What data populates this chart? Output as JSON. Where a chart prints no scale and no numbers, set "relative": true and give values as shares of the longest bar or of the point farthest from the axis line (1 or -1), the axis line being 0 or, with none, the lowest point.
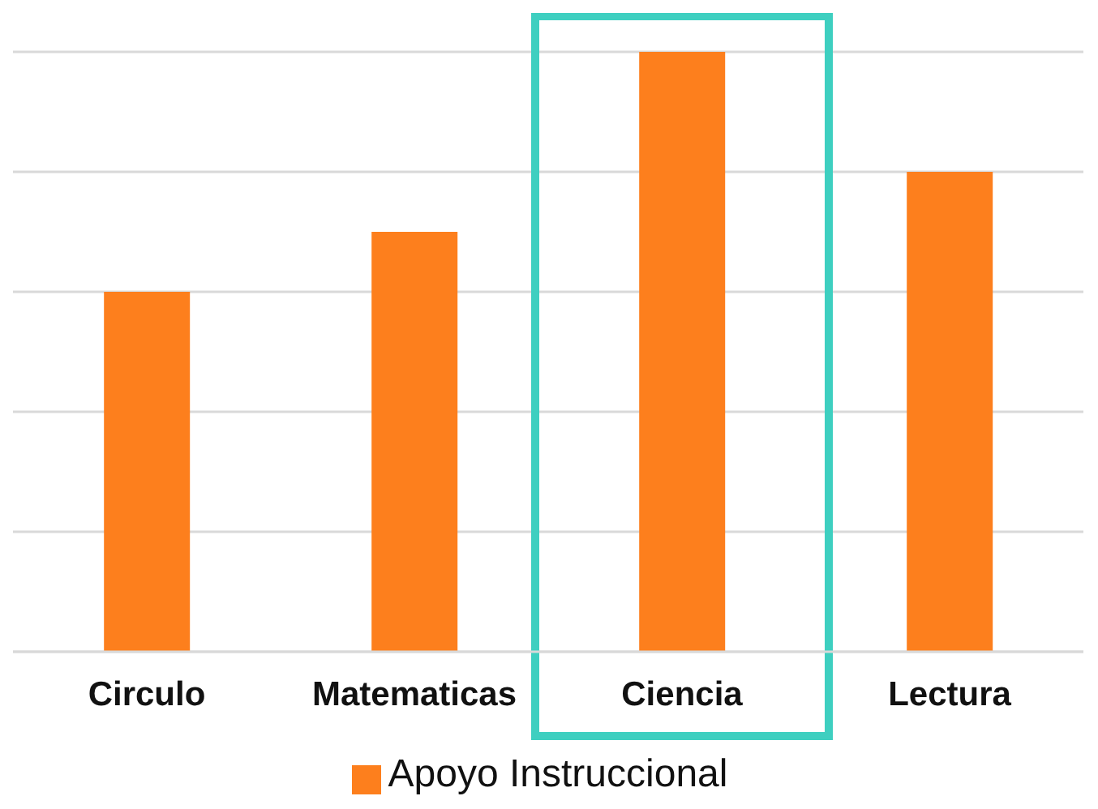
{
  "chart_data": {
    "type": "bar",
    "relative": true,
    "categories": [
      "Circulo",
      "Matematicas",
      "Ciencia",
      "Lectura"
    ],
    "series": [
      {
        "name": "Apoyo Instruccional",
        "color": "#fd7f1d",
        "values": [
          0.6,
          0.7,
          1,
          0.8
        ]
      }
    ],
    "grid": "y",
    "legend": "bottom"
  }
}
